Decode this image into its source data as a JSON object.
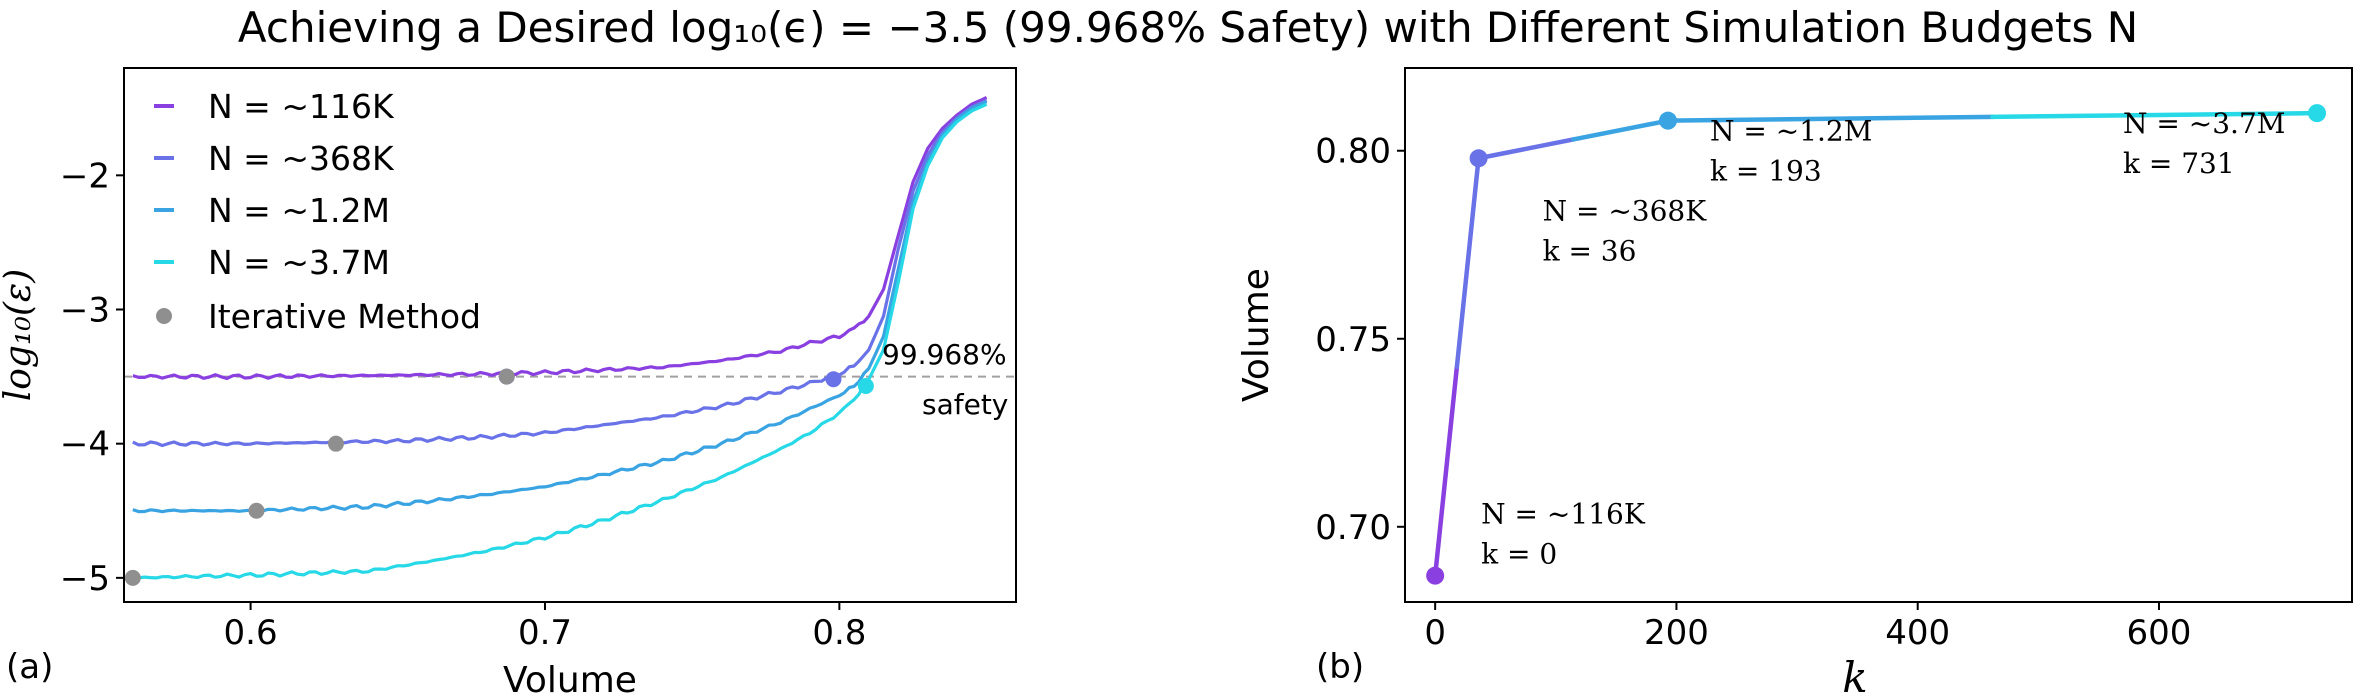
{
  "figure": {
    "title": "Achieving a Desired log₁₀(ϵ) = −3.5 (99.968% Safety) with Different Simulation Budgets N",
    "series_colors": {
      "116K": "#8a3fe0",
      "368K": "#6a72e8",
      "1.2M": "#3aa4e3",
      "3.7M": "#27d8e6",
      "iterative": "#8f8f8f",
      "threshold": "#a0a0a0"
    }
  },
  "chart_data": [
    {
      "type": "line",
      "panel_label": "(a)",
      "xlabel": "Volume",
      "ylabel": "log₁₀(ε)",
      "xlim": [
        0.557,
        0.86
      ],
      "ylim": [
        -5.18,
        -1.2
      ],
      "xticks": [
        0.6,
        0.7,
        0.8
      ],
      "xtick_labels": [
        "0.6",
        "0.7",
        "0.8"
      ],
      "yticks": [
        -5,
        -4,
        -3,
        -2
      ],
      "ytick_labels": [
        "−5",
        "−4",
        "−3",
        "−2"
      ],
      "threshold": {
        "y": -3.5,
        "label_line1": "99.968%",
        "label_line2": "safety"
      },
      "series": [
        {
          "name": "N = ~116K",
          "key": "116K",
          "x": [
            0.56,
            0.6,
            0.65,
            0.68,
            0.7,
            0.72,
            0.74,
            0.76,
            0.78,
            0.79,
            0.8,
            0.805,
            0.81,
            0.815,
            0.82,
            0.825,
            0.83,
            0.835,
            0.84,
            0.845,
            0.85
          ],
          "y": [
            -3.5,
            -3.5,
            -3.49,
            -3.48,
            -3.47,
            -3.45,
            -3.43,
            -3.38,
            -3.31,
            -3.25,
            -3.2,
            -3.14,
            -3.05,
            -2.85,
            -2.45,
            -2.05,
            -1.8,
            -1.65,
            -1.55,
            -1.47,
            -1.42
          ]
        },
        {
          "name": "N = ~368K",
          "key": "368K",
          "x": [
            0.56,
            0.6,
            0.65,
            0.68,
            0.7,
            0.72,
            0.74,
            0.76,
            0.78,
            0.79,
            0.8,
            0.805,
            0.81,
            0.815,
            0.82,
            0.825,
            0.83,
            0.835,
            0.84,
            0.845,
            0.85
          ],
          "y": [
            -4.0,
            -4.0,
            -3.98,
            -3.95,
            -3.92,
            -3.86,
            -3.8,
            -3.72,
            -3.61,
            -3.55,
            -3.48,
            -3.42,
            -3.3,
            -3.05,
            -2.55,
            -2.12,
            -1.85,
            -1.68,
            -1.57,
            -1.49,
            -1.44
          ]
        },
        {
          "name": "N = ~1.2M",
          "key": "1.2M",
          "x": [
            0.56,
            0.6,
            0.64,
            0.66,
            0.68,
            0.7,
            0.72,
            0.74,
            0.76,
            0.78,
            0.79,
            0.8,
            0.805,
            0.81,
            0.815,
            0.82,
            0.825,
            0.83,
            0.835,
            0.84,
            0.845,
            0.85
          ],
          "y": [
            -4.5,
            -4.5,
            -4.47,
            -4.43,
            -4.38,
            -4.32,
            -4.23,
            -4.13,
            -4.0,
            -3.84,
            -3.74,
            -3.64,
            -3.57,
            -3.44,
            -3.2,
            -2.7,
            -2.2,
            -1.9,
            -1.7,
            -1.58,
            -1.5,
            -1.45
          ]
        },
        {
          "name": "N = ~3.7M",
          "key": "3.7M",
          "x": [
            0.56,
            0.6,
            0.64,
            0.66,
            0.68,
            0.7,
            0.72,
            0.74,
            0.76,
            0.78,
            0.79,
            0.8,
            0.805,
            0.81,
            0.815,
            0.82,
            0.825,
            0.83,
            0.835,
            0.84,
            0.845,
            0.85
          ],
          "y": [
            -5.0,
            -4.98,
            -4.95,
            -4.88,
            -4.8,
            -4.7,
            -4.57,
            -4.42,
            -4.25,
            -4.04,
            -3.92,
            -3.77,
            -3.67,
            -3.52,
            -3.3,
            -2.8,
            -2.25,
            -1.93,
            -1.72,
            -1.6,
            -1.52,
            -1.47
          ]
        }
      ],
      "iterative_points": [
        {
          "x": 0.56,
          "y": -5.0
        },
        {
          "x": 0.602,
          "y": -4.5
        },
        {
          "x": 0.629,
          "y": -4.0
        },
        {
          "x": 0.687,
          "y": -3.5
        }
      ],
      "endpoints": [
        {
          "key": "116K",
          "x": 0.687,
          "y": -3.5
        },
        {
          "key": "368K",
          "x": 0.798,
          "y": -3.52
        },
        {
          "key": "3.7M",
          "x": 0.809,
          "y": -3.57
        }
      ],
      "legend": {
        "position": "top-left",
        "iterative_label": "Iterative Method"
      }
    },
    {
      "type": "line",
      "panel_label": "(b)",
      "xlabel": "k",
      "ylabel": "Volume",
      "xlim": [
        -25,
        760
      ],
      "ylim": [
        0.68,
        0.822
      ],
      "xticks": [
        0,
        200,
        400,
        600
      ],
      "xtick_labels": [
        "0",
        "200",
        "400",
        "600"
      ],
      "yticks": [
        0.7,
        0.75,
        0.8
      ],
      "ytick_labels": [
        "0.70",
        "0.75",
        "0.80"
      ],
      "points": [
        {
          "k": 0,
          "volume": 0.687,
          "key": "116K",
          "label_n": "N = ~116K",
          "label_k": "k = 0"
        },
        {
          "k": 36,
          "volume": 0.798,
          "key": "368K",
          "label_n": "N = ~368K",
          "label_k": "k = 36"
        },
        {
          "k": 193,
          "volume": 0.808,
          "key": "1.2M",
          "label_n": "N = ~1.2M",
          "label_k": "k = 193"
        },
        {
          "k": 731,
          "volume": 0.81,
          "key": "3.7M",
          "label_n": "N = ~3.7M",
          "label_k": "k = 731"
        }
      ]
    }
  ]
}
